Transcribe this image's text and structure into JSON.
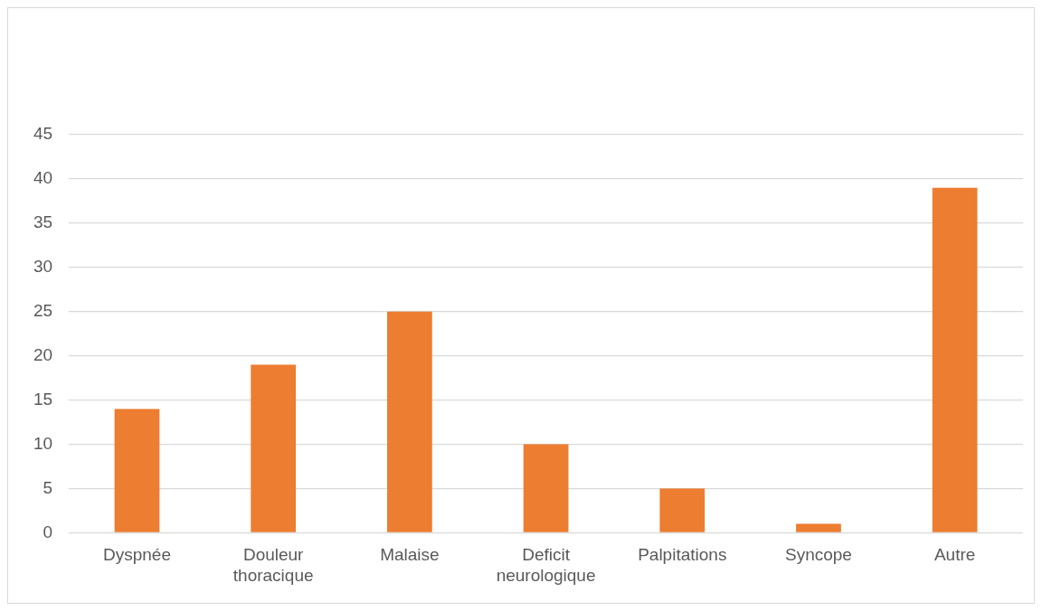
{
  "chart_data": {
    "type": "bar",
    "categories": [
      "Dyspnée",
      "Douleur thoracique",
      "Malaise",
      "Deficit neurologique",
      "Palpitations",
      "Syncope",
      "Autre"
    ],
    "values": [
      14,
      19,
      25,
      10,
      5,
      1,
      39
    ],
    "color": "#ed7d31",
    "ylim": [
      0,
      45
    ],
    "yticks": [
      0,
      5,
      10,
      15,
      20,
      25,
      30,
      35,
      40,
      45
    ],
    "grid": "y",
    "legend": false
  }
}
